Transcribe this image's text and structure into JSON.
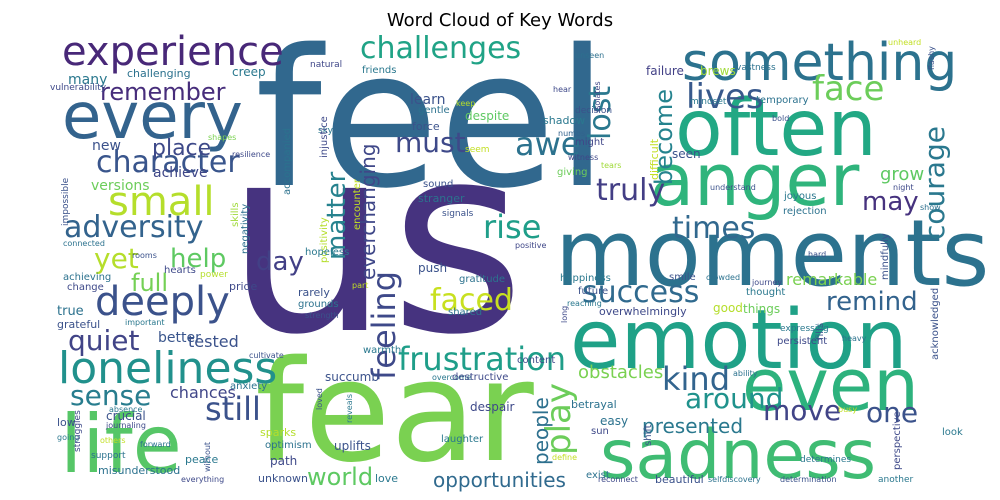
{
  "chart_data": {
    "type": "wordcloud",
    "title": "Word Cloud of Key Words",
    "words": [
      {
        "text": "us",
        "color": "#46337f"
      },
      {
        "text": "feel",
        "color": "#31688e"
      },
      {
        "text": "fear",
        "color": "#7ad151"
      },
      {
        "text": "moments",
        "color": "#2c728e"
      },
      {
        "text": "emotion",
        "color": "#1fa187"
      },
      {
        "text": "often",
        "color": "#22a884"
      },
      {
        "text": "anger",
        "color": "#2fb47c"
      },
      {
        "text": "sadness",
        "color": "#3fbc73"
      },
      {
        "text": "life",
        "color": "#56c667"
      },
      {
        "text": "even",
        "color": "#2db27d"
      },
      {
        "text": "every",
        "color": "#33638d"
      },
      {
        "text": "something",
        "color": "#2c728e"
      },
      {
        "text": "experience",
        "color": "#482878"
      },
      {
        "text": "loneliness",
        "color": "#21918c"
      },
      {
        "text": "deeply",
        "color": "#3b528b"
      },
      {
        "text": "small",
        "color": "#b5de2b"
      },
      {
        "text": "character",
        "color": "#39558c"
      },
      {
        "text": "adversity",
        "color": "#33638d"
      },
      {
        "text": "challenges",
        "color": "#20a386"
      },
      {
        "text": "frustration",
        "color": "#1f9e89"
      },
      {
        "text": "success",
        "color": "#306a8e"
      },
      {
        "text": "feeling",
        "color": "#3e4989"
      },
      {
        "text": "courage",
        "color": "#2a788e"
      },
      {
        "text": "lives",
        "color": "#38598c"
      },
      {
        "text": "face",
        "color": "#6ccd5a"
      },
      {
        "text": "sense",
        "color": "#287d8e"
      },
      {
        "text": "still",
        "color": "#3b528b"
      },
      {
        "text": "quiet",
        "color": "#414487"
      },
      {
        "text": "times",
        "color": "#31688e"
      },
      {
        "text": "truly",
        "color": "#433e85"
      },
      {
        "text": "must",
        "color": "#3e4989"
      },
      {
        "text": "awe",
        "color": "#2c728e"
      },
      {
        "text": "remember",
        "color": "#472d7b"
      },
      {
        "text": "kind",
        "color": "#32648e"
      },
      {
        "text": "around",
        "color": "#20928c"
      },
      {
        "text": "move",
        "color": "#414487"
      },
      {
        "text": "play",
        "color": "#6ccd5a"
      },
      {
        "text": "faced",
        "color": "#c8e020"
      },
      {
        "text": "remind",
        "color": "#33638d"
      },
      {
        "text": "rise",
        "color": "#1f9e89"
      },
      {
        "text": "lost",
        "color": "#2a788e"
      },
      {
        "text": "become",
        "color": "#25838e"
      },
      {
        "text": "one",
        "color": "#3b528b"
      },
      {
        "text": "may",
        "color": "#46327e"
      },
      {
        "text": "help",
        "color": "#5ec962"
      },
      {
        "text": "yet",
        "color": "#b5de2b"
      },
      {
        "text": "matter",
        "color": "#26828e"
      },
      {
        "text": "place",
        "color": "#3e4989"
      },
      {
        "text": "day",
        "color": "#424086"
      },
      {
        "text": "world",
        "color": "#5ec962"
      },
      {
        "text": "everchanging",
        "color": "#3f4788"
      },
      {
        "text": "full",
        "color": "#74d055"
      },
      {
        "text": "people",
        "color": "#2d708e"
      },
      {
        "text": "presented",
        "color": "#2a788e"
      },
      {
        "text": "opportunities",
        "color": "#306a8e"
      },
      {
        "text": "obstacles",
        "color": "#7ad151"
      },
      {
        "text": "remarkable",
        "color": "#7ad151"
      },
      {
        "text": "tested",
        "color": "#3b528b"
      },
      {
        "text": "chances",
        "color": "#404688"
      },
      {
        "text": "better",
        "color": "#39558c"
      },
      {
        "text": "grow",
        "color": "#5ec962"
      },
      {
        "text": "many",
        "color": "#2a788e"
      },
      {
        "text": "new",
        "color": "#3b528b"
      },
      {
        "text": "achieve",
        "color": "#3f4788"
      },
      {
        "text": "versions",
        "color": "#6ccd5a"
      },
      {
        "text": "learn",
        "color": "#3b528b"
      },
      {
        "text": "creep",
        "color": "#2a788e"
      },
      {
        "text": "challenging",
        "color": "#2c728e"
      },
      {
        "text": "vulnerability",
        "color": "#3e4989"
      },
      {
        "text": "friends",
        "color": "#2a788e"
      },
      {
        "text": "natural",
        "color": "#3f4788"
      },
      {
        "text": "failure",
        "color": "#424086"
      },
      {
        "text": "brews",
        "color": "#a0da39"
      },
      {
        "text": "vastness",
        "color": "#2c728e"
      },
      {
        "text": "unheard",
        "color": "#c2df23"
      },
      {
        "text": "flashy",
        "color": "#3b528b"
      },
      {
        "text": "unseen",
        "color": "#2d708e"
      },
      {
        "text": "hear",
        "color": "#3e4989"
      },
      {
        "text": "decision",
        "color": "#3b528b"
      },
      {
        "text": "shadow",
        "color": "#2a788e"
      },
      {
        "text": "numbs",
        "color": "#33638d"
      },
      {
        "text": "isolates",
        "color": "#3f4788"
      },
      {
        "text": "mindset",
        "color": "#2a788e"
      },
      {
        "text": "temporary",
        "color": "#2c728e"
      },
      {
        "text": "bold",
        "color": "#3b528b"
      },
      {
        "text": "difficult",
        "color": "#c2df23"
      },
      {
        "text": "seen",
        "color": "#3b528b"
      },
      {
        "text": "might",
        "color": "#404688"
      },
      {
        "text": "witness",
        "color": "#3f4788"
      },
      {
        "text": "tears",
        "color": "#a0da39"
      },
      {
        "text": "giving",
        "color": "#6ccd5a"
      },
      {
        "text": "understand",
        "color": "#3b528b"
      },
      {
        "text": "joyous",
        "color": "#2a788e"
      },
      {
        "text": "night",
        "color": "#3e4989"
      },
      {
        "text": "keep",
        "color": "#b5de2b"
      },
      {
        "text": "despite",
        "color": "#5ec962"
      },
      {
        "text": "gentle",
        "color": "#2c728e"
      },
      {
        "text": "force",
        "color": "#3b528b"
      },
      {
        "text": "seem",
        "color": "#c2df23"
      },
      {
        "text": "sky",
        "color": "#2a788e"
      },
      {
        "text": "injustice",
        "color": "#3e4989"
      },
      {
        "text": "accompanied",
        "color": "#2c728e"
      },
      {
        "text": "shapes",
        "color": "#7ad151"
      },
      {
        "text": "resilience",
        "color": "#3e4989"
      },
      {
        "text": "impossible",
        "color": "#3b528b"
      },
      {
        "text": "skills",
        "color": "#a0da39"
      },
      {
        "text": "negativity",
        "color": "#2d708e"
      },
      {
        "text": "encounter",
        "color": "#c2df23"
      },
      {
        "text": "positivity",
        "color": "#b5de2b"
      },
      {
        "text": "sound",
        "color": "#3b528b"
      },
      {
        "text": "stranger",
        "color": "#2c728e"
      },
      {
        "text": "signals",
        "color": "#3b528b"
      },
      {
        "text": "hopeless",
        "color": "#2a788e"
      },
      {
        "text": "positive",
        "color": "#3f4788"
      },
      {
        "text": "rejection",
        "color": "#2c728e"
      },
      {
        "text": "mindfully",
        "color": "#3b528b"
      },
      {
        "text": "show",
        "color": "#2d708e"
      },
      {
        "text": "hard",
        "color": "#3b528b"
      },
      {
        "text": "connected",
        "color": "#2c728e"
      },
      {
        "text": "rooms",
        "color": "#3b528b"
      },
      {
        "text": "hearts",
        "color": "#3e4989"
      },
      {
        "text": "power",
        "color": "#b5de2b"
      },
      {
        "text": "achieving",
        "color": "#2c728e"
      },
      {
        "text": "change",
        "color": "#3e4989"
      },
      {
        "text": "push",
        "color": "#3b528b"
      },
      {
        "text": "gratitude",
        "color": "#2c728e"
      },
      {
        "text": "happiness",
        "color": "#2a788e"
      },
      {
        "text": "smile",
        "color": "#3b528b"
      },
      {
        "text": "crowded",
        "color": "#2c728e"
      },
      {
        "text": "journey",
        "color": "#3e4989"
      },
      {
        "text": "future",
        "color": "#3b528b"
      },
      {
        "text": "thought",
        "color": "#2a788e"
      },
      {
        "text": "acknowledged",
        "color": "#3b528b"
      },
      {
        "text": "pride",
        "color": "#3e4989"
      },
      {
        "text": "part",
        "color": "#c2df23"
      },
      {
        "text": "grounds",
        "color": "#2c728e"
      },
      {
        "text": "strength",
        "color": "#3b528b"
      },
      {
        "text": "reaching",
        "color": "#2a788e"
      },
      {
        "text": "long",
        "color": "#3e4989"
      },
      {
        "text": "true",
        "color": "#2c728e"
      },
      {
        "text": "grateful",
        "color": "#3b528b"
      },
      {
        "text": "important",
        "color": "#2a788e"
      },
      {
        "text": "rarely",
        "color": "#3b528b"
      },
      {
        "text": "shared",
        "color": "#2c728e"
      },
      {
        "text": "overwhelmingly",
        "color": "#3e4989"
      },
      {
        "text": "good",
        "color": "#b5de2b"
      },
      {
        "text": "things",
        "color": "#6ccd5a"
      },
      {
        "text": "fills",
        "color": "#3b528b"
      },
      {
        "text": "expressing",
        "color": "#2a788e"
      },
      {
        "text": "persistent",
        "color": "#3e4989"
      },
      {
        "text": "heavy",
        "color": "#2c728e"
      },
      {
        "text": "cultivate",
        "color": "#3b528b"
      },
      {
        "text": "warmth",
        "color": "#2a788e"
      },
      {
        "text": "content",
        "color": "#3e4989"
      },
      {
        "text": "anxiety",
        "color": "#2c728e"
      },
      {
        "text": "succumb",
        "color": "#3b528b"
      },
      {
        "text": "overcome",
        "color": "#2a788e"
      },
      {
        "text": "destructive",
        "color": "#3e4989"
      },
      {
        "text": "ability",
        "color": "#2c728e"
      },
      {
        "text": "crucial",
        "color": "#3b528b"
      },
      {
        "text": "absence",
        "color": "#2a788e"
      },
      {
        "text": "journaling",
        "color": "#3e4989"
      },
      {
        "text": "sparks",
        "color": "#b5de2b"
      },
      {
        "text": "optimism",
        "color": "#2c728e"
      },
      {
        "text": "loved",
        "color": "#3b528b"
      },
      {
        "text": "reveals",
        "color": "#2a788e"
      },
      {
        "text": "despair",
        "color": "#3e4989"
      },
      {
        "text": "betrayal",
        "color": "#2c728e"
      },
      {
        "text": "busy",
        "color": "#c2df23"
      },
      {
        "text": "low",
        "color": "#3b528b"
      },
      {
        "text": "going",
        "color": "#2a788e"
      },
      {
        "text": "struggles",
        "color": "#3e4989"
      },
      {
        "text": "others",
        "color": "#c2df23"
      },
      {
        "text": "forward",
        "color": "#2c728e"
      },
      {
        "text": "uplifts",
        "color": "#3b528b"
      },
      {
        "text": "laughter",
        "color": "#2a788e"
      },
      {
        "text": "sun",
        "color": "#3e4989"
      },
      {
        "text": "easy",
        "color": "#2c728e"
      },
      {
        "text": "shift",
        "color": "#3b528b"
      },
      {
        "text": "look",
        "color": "#2a788e"
      },
      {
        "text": "perspective",
        "color": "#3e4989"
      },
      {
        "text": "support",
        "color": "#2c728e"
      },
      {
        "text": "without",
        "color": "#3b528b"
      },
      {
        "text": "peace",
        "color": "#2a788e"
      },
      {
        "text": "path",
        "color": "#3e4989"
      },
      {
        "text": "define",
        "color": "#c2df23"
      },
      {
        "text": "exist",
        "color": "#2c728e"
      },
      {
        "text": "beautiful",
        "color": "#3b528b"
      },
      {
        "text": "determines",
        "color": "#2a788e"
      },
      {
        "text": "everything",
        "color": "#3e4989"
      },
      {
        "text": "misunderstood",
        "color": "#2c728e"
      },
      {
        "text": "unknown",
        "color": "#3b528b"
      },
      {
        "text": "love",
        "color": "#2a788e"
      },
      {
        "text": "reconnect",
        "color": "#3e4989"
      },
      {
        "text": "selfdiscovery",
        "color": "#2c728e"
      },
      {
        "text": "determination",
        "color": "#3b528b"
      },
      {
        "text": "another",
        "color": "#2a788e"
      }
    ]
  }
}
